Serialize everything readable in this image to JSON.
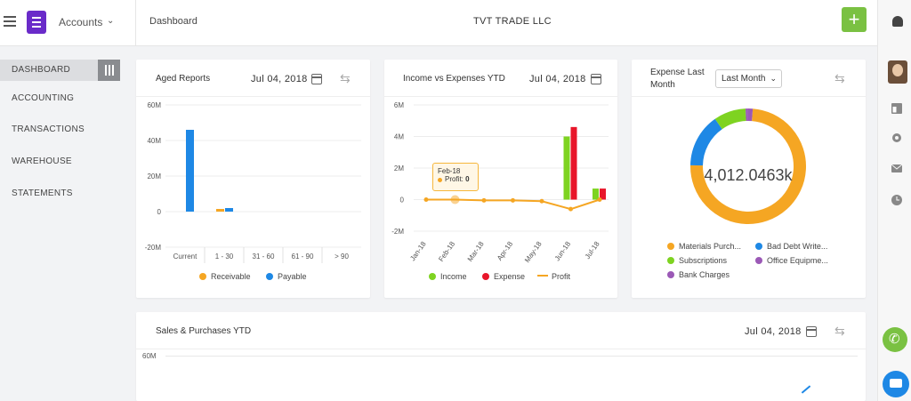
{
  "header": {
    "app": "Accounts",
    "breadcrumb": "Dashboard",
    "company": "TVT TRADE LLC",
    "add_label": "+"
  },
  "sidebar": {
    "items": [
      {
        "label": "DASHBOARD"
      },
      {
        "label": "ACCOUNTING"
      },
      {
        "label": "TRANSACTIONS"
      },
      {
        "label": "WAREHOUSE"
      },
      {
        "label": "STATEMENTS"
      }
    ]
  },
  "aged": {
    "title": "Aged Reports",
    "date": "Jul 04, 2018"
  },
  "income": {
    "title": "Income vs Expenses YTD",
    "date": "Jul 04, 2018",
    "tooltip_month": "Feb-18",
    "tooltip_label": "Profit:",
    "tooltip_value": "0"
  },
  "expense": {
    "title_line1": "Expense Last",
    "title_line2": "Month",
    "select": "Last Month",
    "center": "4,012.0463k"
  },
  "sales": {
    "title": "Sales & Purchases YTD",
    "date": "Jul 04, 2018",
    "ytick": "60M"
  },
  "colors": {
    "receivable": "#f5a623",
    "payable": "#1e88e5",
    "income": "#7ed321",
    "expense": "#e8162a",
    "profit": "#f5a623",
    "materials": "#f5a623",
    "bad_debt": "#1e88e5",
    "subscriptions": "#7ed321",
    "office": "#9b59b6",
    "bank": "#9b59b6"
  },
  "chart_data": [
    {
      "type": "bar",
      "title": "Aged Reports",
      "categories": [
        "Current",
        "1 - 30",
        "31 - 60",
        "61 - 90",
        "> 90"
      ],
      "yticks": [
        "60M",
        "40M",
        "20M",
        "0",
        "-20M"
      ],
      "ylim": [
        -20,
        60
      ],
      "series": [
        {
          "name": "Receivable",
          "values": [
            0,
            1.5,
            0,
            0,
            0
          ]
        },
        {
          "name": "Payable",
          "values": [
            46,
            2,
            0,
            0,
            0
          ]
        }
      ]
    },
    {
      "type": "bar",
      "title": "Income vs Expenses YTD",
      "categories": [
        "Jan-18",
        "Feb-18",
        "Mar-18",
        "Apr-18",
        "May-18",
        "Jun-18",
        "Jul-18"
      ],
      "yticks": [
        "6M",
        "4M",
        "2M",
        "0",
        "-2M"
      ],
      "ylim": [
        -2,
        6
      ],
      "series": [
        {
          "name": "Income",
          "values": [
            0,
            0,
            0,
            0,
            0,
            4,
            0.7
          ]
        },
        {
          "name": "Expense",
          "values": [
            0,
            0,
            0,
            0,
            0,
            4.6,
            0.7
          ]
        },
        {
          "name": "Profit",
          "values": [
            0,
            0,
            -0.05,
            -0.05,
            -0.1,
            -0.6,
            0
          ]
        }
      ]
    },
    {
      "type": "pie",
      "title": "Expense Last Month",
      "labels": [
        "Materials Purch...",
        "Bad Debt Write...",
        "Subscriptions",
        "Office Equipme...",
        "Bank Charges"
      ],
      "values": [
        74,
        15,
        9,
        0.7,
        1.3
      ]
    }
  ]
}
